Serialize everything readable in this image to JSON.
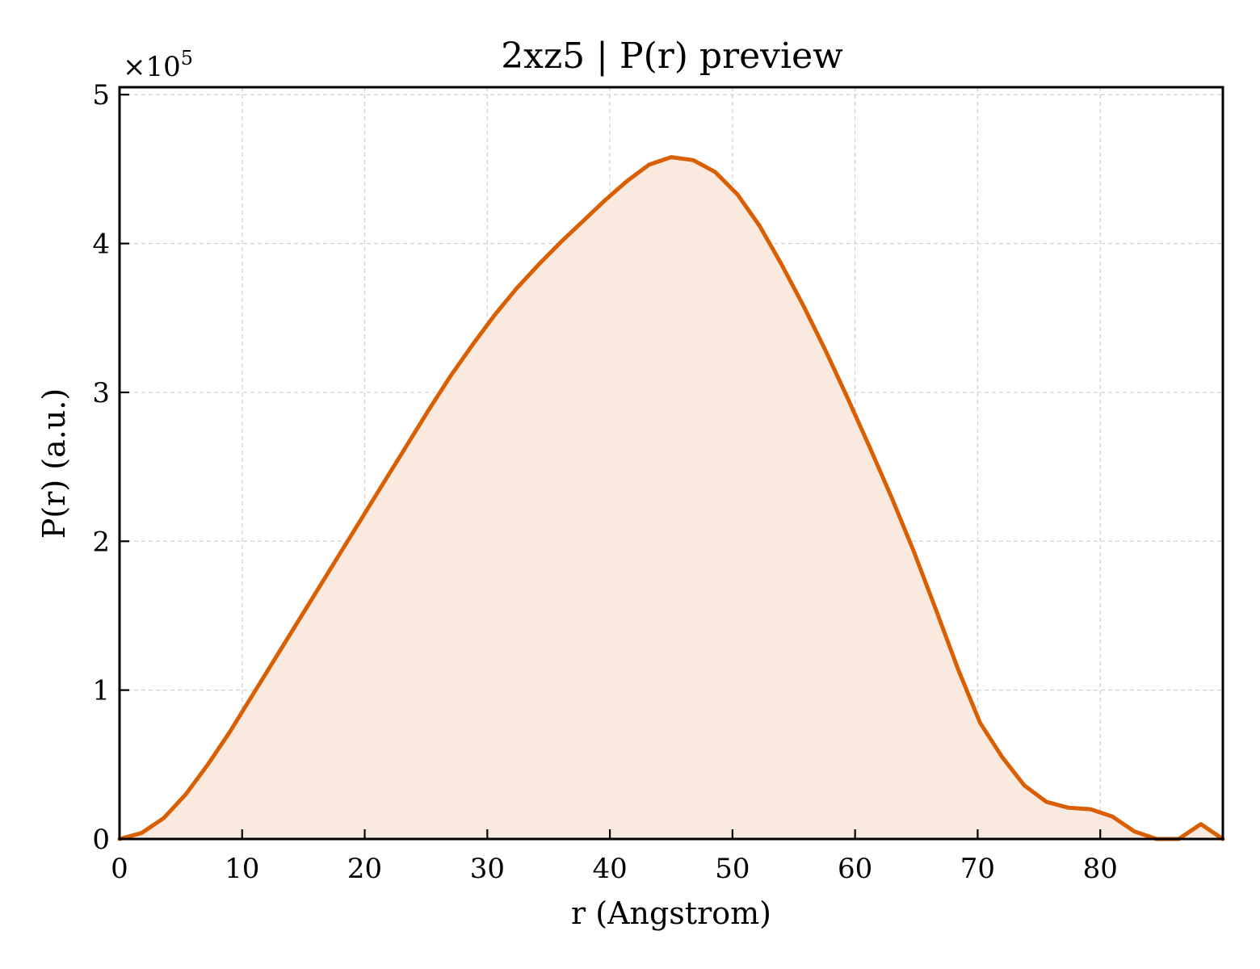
{
  "chart_data": {
    "type": "area",
    "title": "2xz5 | P(r) preview",
    "xlabel": "r (Angstrom)",
    "ylabel": "P(r) (a.u.)",
    "y_multiplier_label": "×10",
    "y_multiplier_exponent": "5",
    "xlim": [
      0,
      90
    ],
    "ylim": [
      0,
      5.05
    ],
    "x_ticks": [
      0,
      10,
      20,
      30,
      40,
      50,
      60,
      70,
      80
    ],
    "x_tick_labels": [
      "0",
      "10",
      "20",
      "30",
      "40",
      "50",
      "60",
      "70",
      "80"
    ],
    "y_ticks": [
      0,
      1,
      2,
      3,
      4,
      5
    ],
    "y_tick_labels": [
      "0",
      "1",
      "2",
      "3",
      "4",
      "5"
    ],
    "grid": true,
    "line_color": "#d95f02",
    "fill_color": "#f9e9df",
    "series": [
      {
        "x": [
          0,
          1.8,
          3.6,
          5.4,
          7.2,
          9.0,
          10.8,
          12.6,
          14.4,
          16.2,
          18.0,
          19.8,
          21.6,
          23.4,
          25.2,
          27.0,
          28.8,
          30.6,
          32.4,
          34.2,
          36.0,
          37.8,
          39.6,
          41.4,
          43.2,
          45.0,
          46.8,
          48.6,
          50.4,
          52.2,
          54.0,
          55.8,
          57.6,
          59.4,
          61.2,
          63.0,
          64.8,
          66.6,
          68.4,
          70.2,
          72.0,
          73.8,
          75.6,
          77.4,
          79.2,
          81.0,
          82.8,
          84.6,
          86.4,
          88.2,
          90.0
        ],
        "y": [
          0.0,
          0.04,
          0.14,
          0.3,
          0.5,
          0.72,
          0.96,
          1.2,
          1.44,
          1.68,
          1.92,
          2.16,
          2.4,
          2.64,
          2.88,
          3.11,
          3.32,
          3.52,
          3.7,
          3.86,
          4.01,
          4.15,
          4.29,
          4.42,
          4.53,
          4.58,
          4.56,
          4.48,
          4.33,
          4.12,
          3.86,
          3.58,
          3.28,
          2.96,
          2.63,
          2.29,
          1.93,
          1.54,
          1.14,
          0.78,
          0.55,
          0.36,
          0.25,
          0.21,
          0.2,
          0.15,
          0.05,
          0.0,
          0.0,
          0.1,
          0.0
        ]
      }
    ]
  }
}
